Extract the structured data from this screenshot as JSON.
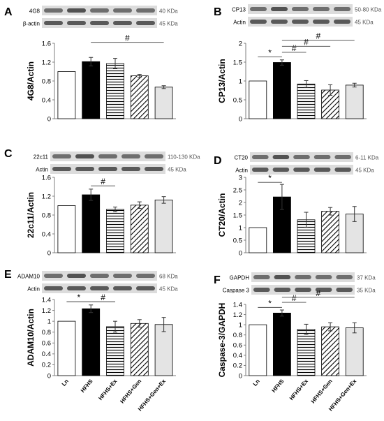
{
  "colors": {
    "axis": "#7f7f7f",
    "bar_edge": "#000000",
    "light_gray": "#e4e4e4",
    "blot_bg": "#dcdcdc",
    "blot_band": "#4a4a4a"
  },
  "chart_data": [
    {
      "panel": "A",
      "type": "bar",
      "ylabel": "4G8/Actin",
      "ylim": [
        0,
        1.6
      ],
      "yticks": [
        "0",
        "0.4",
        "0.8",
        "1.2",
        "1.6"
      ],
      "categories": [
        "Ln",
        "HFHS",
        "HFHS+Ex",
        "HFHS+Gen",
        "HFHS+Gen+Ex"
      ],
      "values": [
        1.0,
        1.21,
        1.17,
        0.91,
        0.67
      ],
      "errors": [
        0.0,
        0.09,
        0.11,
        0.03,
        0.03
      ],
      "patterns": [
        "white",
        "black",
        "hlines",
        "diag",
        "lightgray"
      ],
      "show_xlabels": false,
      "blots": [
        {
          "label": "4G8",
          "size": "40 KDa"
        },
        {
          "label": "β-actin",
          "size": "45 KDa"
        }
      ],
      "sig": [
        {
          "symbol": "#",
          "from": 1,
          "to": 4,
          "y": 1.62
        }
      ]
    },
    {
      "panel": "B",
      "type": "bar",
      "ylabel": "CP13/Actin",
      "ylim": [
        0,
        2.0
      ],
      "yticks": [
        "0",
        "0.5",
        "1",
        "1.5",
        "2"
      ],
      "categories": [
        "Ln",
        "HFHS",
        "HFHS+Ex",
        "HFHS+Gen",
        "HFHS+Gen+Ex"
      ],
      "values": [
        1.0,
        1.49,
        0.92,
        0.76,
        0.89
      ],
      "errors": [
        0.0,
        0.07,
        0.09,
        0.14,
        0.05
      ],
      "patterns": [
        "white",
        "black",
        "hlines",
        "diag",
        "lightgray"
      ],
      "show_xlabels": false,
      "blots": [
        {
          "label": "CP13",
          "size": "50-80 KDa"
        },
        {
          "label": "Actin",
          "size": "45 KDa"
        }
      ],
      "sig": [
        {
          "symbol": "*",
          "from": 0,
          "to": 1,
          "y": 1.64
        },
        {
          "symbol": "#",
          "from": 1,
          "to": 2,
          "y": 1.76
        },
        {
          "symbol": "#",
          "from": 1,
          "to": 3,
          "y": 1.92
        },
        {
          "symbol": "#",
          "from": 1,
          "to": 4,
          "y": 2.08
        }
      ]
    },
    {
      "panel": "C",
      "type": "bar",
      "ylabel": "22c11/Actin",
      "ylim": [
        0,
        1.6
      ],
      "yticks": [
        "0",
        "0.4",
        "0.8",
        "1.2",
        "1.6"
      ],
      "categories": [
        "Ln",
        "HFHS",
        "HFHS+Ex",
        "HFHS+Gen",
        "HFHS+Gen+Ex"
      ],
      "values": [
        1.0,
        1.23,
        0.92,
        1.01,
        1.12
      ],
      "errors": [
        0.0,
        0.12,
        0.05,
        0.07,
        0.07
      ],
      "patterns": [
        "white",
        "black",
        "hlines",
        "diag",
        "lightgray"
      ],
      "show_xlabels": false,
      "blots": [
        {
          "label": "22c11",
          "size": "110-130 KDa"
        },
        {
          "label": "Actin",
          "size": "45 KDa"
        }
      ],
      "sig": [
        {
          "symbol": "#",
          "from": 1,
          "to": 2,
          "y": 1.42
        }
      ]
    },
    {
      "panel": "D",
      "type": "bar",
      "ylabel": "CT20/Actin",
      "ylim": [
        0,
        3.0
      ],
      "yticks": [
        "0",
        "0.5",
        "1",
        "1.5",
        "2",
        "2.5",
        "3"
      ],
      "categories": [
        "Ln",
        "HFHS",
        "HFHS+Ex",
        "HFHS+Gen",
        "HFHS+Gen+Ex"
      ],
      "values": [
        1.0,
        2.22,
        1.31,
        1.65,
        1.54
      ],
      "errors": [
        0.0,
        0.5,
        0.3,
        0.15,
        0.3
      ],
      "patterns": [
        "white",
        "black",
        "hlines",
        "diag",
        "lightgray"
      ],
      "show_xlabels": false,
      "blots": [
        {
          "label": "CT20",
          "size": "6-11 KDa"
        },
        {
          "label": "Actin",
          "size": "45 KDa"
        }
      ],
      "sig": [
        {
          "symbol": "*",
          "from": 0,
          "to": 1,
          "y": 2.8
        }
      ]
    },
    {
      "panel": "E",
      "type": "bar",
      "ylabel": "ADAM10/Actin",
      "ylim": [
        0,
        1.4
      ],
      "yticks": [
        "0",
        "0.2",
        "0.4",
        "0.6",
        "0.8",
        "1",
        "1.2",
        "1.4"
      ],
      "categories": [
        "Ln",
        "HFHS",
        "HFHS+Ex",
        "HFHS+Gen",
        "HFHS+Gen+Ex"
      ],
      "values": [
        1.0,
        1.23,
        0.9,
        0.96,
        0.94
      ],
      "errors": [
        0.0,
        0.07,
        0.1,
        0.07,
        0.13
      ],
      "patterns": [
        "white",
        "black",
        "hlines",
        "diag",
        "lightgray"
      ],
      "show_xlabels": true,
      "blots": [
        {
          "label": "ADAM10",
          "size": "68 KDa"
        },
        {
          "label": "Actin",
          "size": "45 KDa"
        }
      ],
      "sig": [
        {
          "symbol": "*",
          "from": 0,
          "to": 1,
          "y": 1.36
        },
        {
          "symbol": "#",
          "from": 1,
          "to": 2,
          "y": 1.36
        }
      ]
    },
    {
      "panel": "F",
      "type": "bar",
      "ylabel": "Caspase-3/GAPDH",
      "ylim": [
        0,
        1.4
      ],
      "yticks": [
        "0",
        "0.2",
        "0.4",
        "0.6",
        "0.8",
        "1",
        "1.2",
        "1.4"
      ],
      "categories": [
        "Ln",
        "HFHS",
        "HFHS+Ex",
        "HFHS+Gen",
        "HFHS+Gen+Ex"
      ],
      "values": [
        1.0,
        1.23,
        0.91,
        0.96,
        0.94
      ],
      "errors": [
        0.0,
        0.06,
        0.1,
        0.08,
        0.1
      ],
      "patterns": [
        "white",
        "black",
        "hlines",
        "diag",
        "lightgray"
      ],
      "show_xlabels": true,
      "blots": [
        {
          "label": "GAPDH",
          "size": "37 KDa"
        },
        {
          "label": "Caspase 3",
          "size": "35 KDa"
        }
      ],
      "sig": [
        {
          "symbol": "*",
          "from": 0,
          "to": 1,
          "y": 1.34
        },
        {
          "symbol": "#",
          "from": 1,
          "to": 2,
          "y": 1.44
        },
        {
          "symbol": "#",
          "from": 1,
          "to": 4,
          "y": 1.54
        }
      ]
    }
  ]
}
